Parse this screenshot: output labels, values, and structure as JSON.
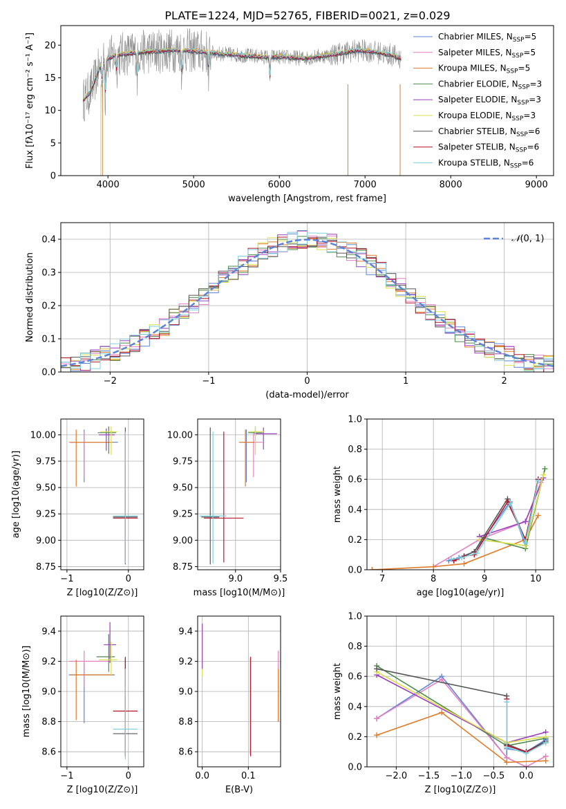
{
  "figure": {
    "title": "PLATE=1224, MJD=52765, FIBERID=0021, z=0.029"
  },
  "colors": {
    "fits": [
      "#5b84d8",
      "#e57fc0",
      "#e07a26",
      "#4e8a4a",
      "#9b3fbf",
      "#d9e04a",
      "#555555",
      "#b5152a",
      "#7fd0dc"
    ],
    "grid": "#b0b0b0",
    "norm_curve": "#5b84d8",
    "data_spectrum": "#8a8a8a"
  },
  "chart_data": [
    {
      "id": "spectrum",
      "type": "line",
      "xlabel": "wavelength [Angstrom, rest frame]",
      "ylabel": "Flux [fλ10⁻¹⁷ erg cm⁻² s⁻¹ A⁻¹]",
      "xlim": [
        3450,
        9200
      ],
      "ylim": [
        0,
        23
      ],
      "xticks": [
        4000,
        5000,
        6000,
        7000,
        8000,
        9000
      ],
      "yticks": [
        0,
        5,
        10,
        15,
        20
      ],
      "grid": false,
      "legend": "top-right",
      "legend_entries": [
        "Chabrier MILES, NSSP=5",
        "Salpeter MILES, NSSP=5",
        "Kroupa MILES, NSSP=5",
        "Chabrier ELODIE, NSSP=3",
        "Salpeter ELODIE, NSSP=3",
        "Kroupa ELODIE, NSSP=3",
        "Chabrier STELIB, NSSP=6",
        "Salpeter STELIB, NSSP=6",
        "Kroupa STELIB, NSSP=6"
      ],
      "continuum": [
        [
          3710,
          11.5
        ],
        [
          3800,
          13
        ],
        [
          3900,
          16.5
        ],
        [
          4000,
          18
        ],
        [
          4100,
          18.5
        ],
        [
          4300,
          18.8
        ],
        [
          4500,
          19
        ],
        [
          4700,
          19.2
        ],
        [
          4900,
          19.2
        ],
        [
          5100,
          19
        ],
        [
          5300,
          18.7
        ],
        [
          5500,
          18.5
        ],
        [
          5800,
          18.2
        ],
        [
          6000,
          18.2
        ],
        [
          6300,
          18
        ],
        [
          6600,
          18.5
        ],
        [
          6900,
          19.2
        ],
        [
          7100,
          19
        ],
        [
          7300,
          18.5
        ],
        [
          7420,
          18
        ]
      ]
    },
    {
      "id": "residuals",
      "type": "step-histogram",
      "xlabel": "(data-model)/error",
      "ylabel": "Normed distribution",
      "xlim": [
        -2.5,
        2.5
      ],
      "ylim": [
        0,
        0.45
      ],
      "xticks": [
        -2,
        -1,
        0,
        1,
        2
      ],
      "yticks": [
        0.0,
        0.1,
        0.2,
        0.3,
        0.4
      ],
      "grid": true,
      "legend": "top-right",
      "legend_entries": [
        "N(0,1)"
      ],
      "bin_width": 0.1,
      "bin_start": -2.5
    },
    {
      "id": "age-vs-Z",
      "type": "errorbar",
      "xlabel": "Z [log10(Z/Z⊙)]",
      "ylabel": "age  [log10(age/yr)]",
      "xlim": [
        -1.1,
        0.25
      ],
      "ylim": [
        8.72,
        10.15
      ],
      "xticks": [
        -1,
        0
      ],
      "yticks": [
        8.75,
        9.0,
        9.25,
        9.5,
        9.75,
        10.0
      ],
      "grid": true,
      "points": [
        {
          "x": -0.72,
          "y": 9.93,
          "xerr": [
            0.22,
            0.55
          ],
          "yerr": [
            0.38,
            0.12
          ],
          "c": 0
        },
        {
          "x": -0.72,
          "y": 9.93,
          "xerr": [
            0.25,
            0.35
          ],
          "yerr": [
            0.33,
            0.1
          ],
          "c": 1
        },
        {
          "x": -0.85,
          "y": 9.93,
          "xerr": [
            0.1,
            0.6
          ],
          "yerr": [
            0.42,
            0.12
          ],
          "c": 2
        },
        {
          "x": -0.32,
          "y": 10.02,
          "xerr": [
            0.18,
            0.12
          ],
          "yerr": [
            0.2,
            0.06
          ],
          "c": 3
        },
        {
          "x": -0.36,
          "y": 10.0,
          "xerr": [
            0.12,
            0.14
          ],
          "yerr": [
            0.15,
            0.06
          ],
          "c": 4
        },
        {
          "x": -0.28,
          "y": 10.03,
          "xerr": [
            0.18,
            0.1
          ],
          "yerr": [
            0.22,
            0.05
          ],
          "c": 5
        },
        {
          "x": -0.05,
          "y": 9.22,
          "xerr": [
            0.2,
            0.2
          ],
          "yerr": [
            0.45,
            0.85
          ],
          "c": 6
        },
        {
          "x": -0.05,
          "y": 9.21,
          "xerr": [
            0.2,
            0.2
          ],
          "yerr": [
            0.42,
            0.82
          ],
          "c": 7
        },
        {
          "x": -0.05,
          "y": 9.23,
          "xerr": [
            0.2,
            0.2
          ],
          "yerr": [
            0.45,
            0.8
          ],
          "c": 8
        }
      ]
    },
    {
      "id": "age-vs-mass",
      "type": "errorbar",
      "xlabel": "mass [log10(M/M⊙)]",
      "ylabel": "",
      "xlim": [
        8.58,
        9.5
      ],
      "ylim": [
        8.72,
        10.15
      ],
      "xticks": [
        9.0,
        9.5
      ],
      "yticks": [
        8.75,
        9.0,
        9.25,
        9.5,
        9.75,
        10.0
      ],
      "grid": true,
      "points": [
        {
          "x": 9.12,
          "y": 9.93,
          "xerr": [
            0.08,
            0.1
          ],
          "yerr": [
            0.38,
            0.12
          ],
          "c": 0
        },
        {
          "x": 9.2,
          "y": 9.93,
          "xerr": [
            0.1,
            0.1
          ],
          "yerr": [
            0.33,
            0.1
          ],
          "c": 1
        },
        {
          "x": 9.11,
          "y": 9.93,
          "xerr": [
            0.07,
            0.1
          ],
          "yerr": [
            0.42,
            0.12
          ],
          "c": 2
        },
        {
          "x": 9.22,
          "y": 10.02,
          "xerr": [
            0.08,
            0.08
          ],
          "yerr": [
            0.2,
            0.06
          ],
          "c": 3
        },
        {
          "x": 9.31,
          "y": 10.01,
          "xerr": [
            0.1,
            0.15
          ],
          "yerr": [
            0.15,
            0.06
          ],
          "c": 4
        },
        {
          "x": 9.22,
          "y": 10.03,
          "xerr": [
            0.08,
            0.1
          ],
          "yerr": [
            0.22,
            0.05
          ],
          "c": 5
        },
        {
          "x": 8.72,
          "y": 9.22,
          "xerr": [
            0.1,
            0.1
          ],
          "yerr": [
            0.45,
            0.85
          ],
          "c": 6
        },
        {
          "x": 8.87,
          "y": 9.21,
          "xerr": [
            0.22,
            0.22
          ],
          "yerr": [
            0.42,
            0.82
          ],
          "c": 7
        },
        {
          "x": 8.75,
          "y": 9.23,
          "xerr": [
            0.15,
            0.15
          ],
          "yerr": [
            0.45,
            0.8
          ],
          "c": 8
        }
      ]
    },
    {
      "id": "weight-vs-age",
      "type": "line",
      "xlabel": "age  [log10(age/yr)]",
      "ylabel": "mass weight",
      "xlim": [
        6.7,
        10.35
      ],
      "ylim": [
        0,
        1.0
      ],
      "xticks": [
        7,
        8,
        9,
        10
      ],
      "yticks": [
        0.0,
        0.2,
        0.4,
        0.6,
        0.8,
        1.0
      ],
      "grid": true,
      "series": [
        {
          "c": 0,
          "x": [
            8.3,
            8.5,
            8.8,
            9.5,
            9.8,
            10.05
          ],
          "y": [
            0.06,
            0.08,
            0.12,
            0.45,
            0.16,
            0.6
          ]
        },
        {
          "c": 1,
          "x": [
            8.0,
            8.9,
            9.8,
            10.1
          ],
          "y": [
            0.02,
            0.2,
            0.32,
            0.58
          ]
        },
        {
          "c": 2,
          "x": [
            6.8,
            8.0,
            8.6,
            9.8,
            10.05
          ],
          "y": [
            0.0,
            0.02,
            0.04,
            0.2,
            0.36
          ]
        },
        {
          "c": 3,
          "x": [
            8.9,
            9.8,
            10.18
          ],
          "y": [
            0.22,
            0.14,
            0.67
          ]
        },
        {
          "c": 4,
          "x": [
            8.9,
            9.8,
            10.15
          ],
          "y": [
            0.22,
            0.32,
            0.61
          ]
        },
        {
          "c": 5,
          "x": [
            8.9,
            9.8,
            10.15
          ],
          "y": [
            0.2,
            0.16,
            0.63
          ]
        },
        {
          "c": 6,
          "x": [
            8.4,
            8.6,
            8.8,
            9.45,
            9.8,
            10.05
          ],
          "y": [
            0.06,
            0.09,
            0.12,
            0.47,
            0.2,
            0.6
          ]
        },
        {
          "c": 7,
          "x": [
            8.4,
            8.6,
            8.8,
            9.45,
            9.8,
            10.05
          ],
          "y": [
            0.06,
            0.09,
            0.1,
            0.45,
            0.2,
            0.6
          ]
        },
        {
          "c": 8,
          "x": [
            8.35,
            8.55,
            8.85,
            9.5,
            9.8,
            10.05
          ],
          "y": [
            0.07,
            0.08,
            0.11,
            0.44,
            0.18,
            0.59
          ]
        }
      ]
    },
    {
      "id": "mass-vs-Z",
      "type": "errorbar",
      "xlabel": "Z [log10(Z/Z⊙)]",
      "ylabel": "mass [log10(M/M⊙)]",
      "xlim": [
        -1.1,
        0.25
      ],
      "ylim": [
        8.5,
        9.5
      ],
      "xticks": [
        -1,
        0
      ],
      "yticks": [
        8.6,
        8.8,
        9.0,
        9.2,
        9.4
      ],
      "grid": true,
      "points": [
        {
          "x": -0.72,
          "y": 9.11,
          "xerr": [
            0.25,
            0.5
          ],
          "yerr": [
            0.32,
            0.08
          ],
          "c": 0
        },
        {
          "x": -0.72,
          "y": 9.2,
          "xerr": [
            0.25,
            0.4
          ],
          "yerr": [
            0.17,
            0.07
          ],
          "c": 1
        },
        {
          "x": -0.85,
          "y": 9.11,
          "xerr": [
            0.1,
            0.6
          ],
          "yerr": [
            0.3,
            0.1
          ],
          "c": 2
        },
        {
          "x": -0.32,
          "y": 9.23,
          "xerr": [
            0.2,
            0.1
          ],
          "yerr": [
            0.1,
            0.15
          ],
          "c": 3
        },
        {
          "x": -0.3,
          "y": 9.31,
          "xerr": [
            0.1,
            0.1
          ],
          "yerr": [
            0.12,
            0.15
          ],
          "c": 4
        },
        {
          "x": -0.28,
          "y": 9.21,
          "xerr": [
            0.2,
            0.1
          ],
          "yerr": [
            0.1,
            0.12
          ],
          "c": 5
        },
        {
          "x": -0.05,
          "y": 8.72,
          "xerr": [
            0.2,
            0.2
          ],
          "yerr": [
            0.15,
            0.5
          ],
          "c": 6
        },
        {
          "x": -0.05,
          "y": 8.87,
          "xerr": [
            0.2,
            0.2
          ],
          "yerr": [
            0.3,
            0.36
          ],
          "c": 7
        },
        {
          "x": -0.05,
          "y": 8.75,
          "xerr": [
            0.2,
            0.2
          ],
          "yerr": [
            0.2,
            0.4
          ],
          "c": 8
        }
      ]
    },
    {
      "id": "mass-vs-EBV",
      "type": "errorbar",
      "xlabel": "E(B-V)",
      "ylabel": "",
      "xlim": [
        -0.01,
        0.17
      ],
      "ylim": [
        8.5,
        9.5
      ],
      "xticks": [
        0.0,
        0.1
      ],
      "yticks": [
        8.6,
        8.8,
        9.0,
        9.2,
        9.4
      ],
      "grid": true,
      "points": [
        {
          "x": 0.0,
          "y": 9.3,
          "yerr": [
            0.2,
            0.15
          ],
          "c": 5
        },
        {
          "x": 0.0,
          "y": 9.25,
          "yerr": [
            0.1,
            0.2
          ],
          "c": 4
        },
        {
          "x": 0.104,
          "y": 8.9,
          "yerr": [
            0.32,
            0.32
          ],
          "c": 8
        },
        {
          "x": 0.105,
          "y": 8.9,
          "yerr": [
            0.33,
            0.33
          ],
          "c": 7
        },
        {
          "x": 0.165,
          "y": 9.1,
          "yerr": [
            0.3,
            0.17
          ],
          "c": 1
        },
        {
          "x": 0.165,
          "y": 9.0,
          "yerr": [
            0.2,
            0.15
          ],
          "c": 2
        }
      ]
    },
    {
      "id": "weight-vs-Z",
      "type": "line",
      "xlabel": "Z [log10(Z/Z⊙)]",
      "ylabel": "mass weight",
      "xlim": [
        -2.45,
        0.42
      ],
      "ylim": [
        0,
        1.0
      ],
      "xticks": [
        -2.0,
        -1.5,
        -1.0,
        -0.5,
        0.0
      ],
      "yticks": [
        0.0,
        0.2,
        0.4,
        0.6,
        0.8,
        1.0
      ],
      "grid": true,
      "series": [
        {
          "c": 0,
          "x": [
            -2.3,
            -1.3,
            -0.3,
            -0.3,
            0.0,
            0.3
          ],
          "y": [
            0.32,
            0.6,
            0.06,
            0.12,
            0.1,
            0.18
          ]
        },
        {
          "c": 1,
          "x": [
            -2.3,
            -1.3,
            -0.3,
            0.0,
            0.3
          ],
          "y": [
            0.32,
            0.58,
            0.06,
            0.0,
            0.07
          ]
        },
        {
          "c": 2,
          "x": [
            -2.3,
            -1.3,
            -0.3,
            0.3
          ],
          "y": [
            0.21,
            0.36,
            0.03,
            0.04
          ]
        },
        {
          "c": 3,
          "x": [
            -2.3,
            -0.3,
            0.3
          ],
          "y": [
            0.67,
            0.14,
            0.19
          ]
        },
        {
          "c": 4,
          "x": [
            -2.3,
            -0.3,
            0.3
          ],
          "y": [
            0.61,
            0.16,
            0.23
          ]
        },
        {
          "c": 5,
          "x": [
            -2.3,
            -0.3,
            0.3
          ],
          "y": [
            0.63,
            0.16,
            0.2
          ]
        },
        {
          "c": 6,
          "x": [
            -2.3,
            -0.3,
            -0.3,
            0.0,
            0.3
          ],
          "y": [
            0.65,
            0.47,
            0.15,
            0.1,
            0.17
          ]
        },
        {
          "c": 7,
          "x": [
            -0.3,
            -0.3,
            0.0,
            0.3
          ],
          "y": [
            0.45,
            0.14,
            0.1,
            0.16
          ]
        },
        {
          "c": 8,
          "x": [
            -0.3,
            -0.3,
            0.0,
            0.3
          ],
          "y": [
            0.43,
            0.13,
            0.09,
            0.16
          ]
        }
      ]
    }
  ]
}
